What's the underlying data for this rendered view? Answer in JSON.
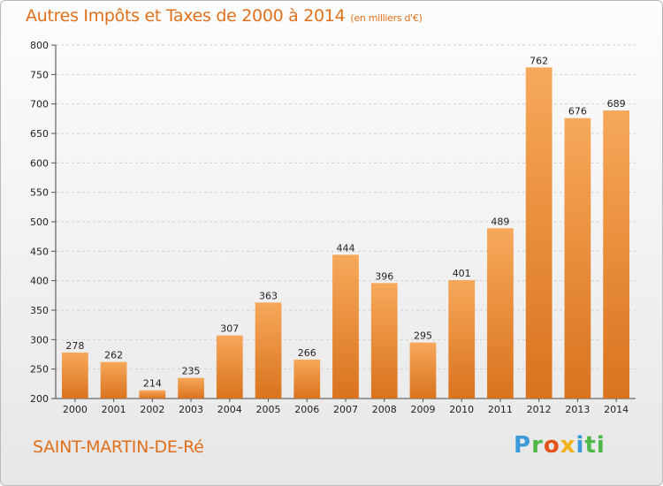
{
  "title": "Autres Impôts et Taxes de 2000 à 2014",
  "subtitle": "(en milliers d'€)",
  "place": "SAINT-MARTIN-DE-Ré",
  "logo": [
    "P",
    "r",
    "o",
    "x",
    "i",
    "ti"
  ],
  "colors": {
    "bar_top": "#f7a85a",
    "bar_bottom": "#d9731e",
    "title": "#e0701c",
    "grid": "#cfcfcf"
  },
  "chart_data": {
    "type": "bar",
    "title": "Autres Impôts et Taxes de 2000 à 2014",
    "subtitle": "(en milliers d'€)",
    "categories": [
      "2000",
      "2001",
      "2002",
      "2003",
      "2004",
      "2005",
      "2006",
      "2007",
      "2008",
      "2009",
      "2010",
      "2011",
      "2012",
      "2013",
      "2014"
    ],
    "values": [
      278,
      262,
      214,
      235,
      307,
      363,
      266,
      444,
      396,
      295,
      401,
      489,
      762,
      676,
      689
    ],
    "ylim": [
      200,
      800
    ],
    "yticks": [
      200,
      250,
      300,
      350,
      400,
      450,
      500,
      550,
      600,
      650,
      700,
      750,
      800
    ],
    "grid": true,
    "xlabel": "",
    "ylabel": ""
  }
}
